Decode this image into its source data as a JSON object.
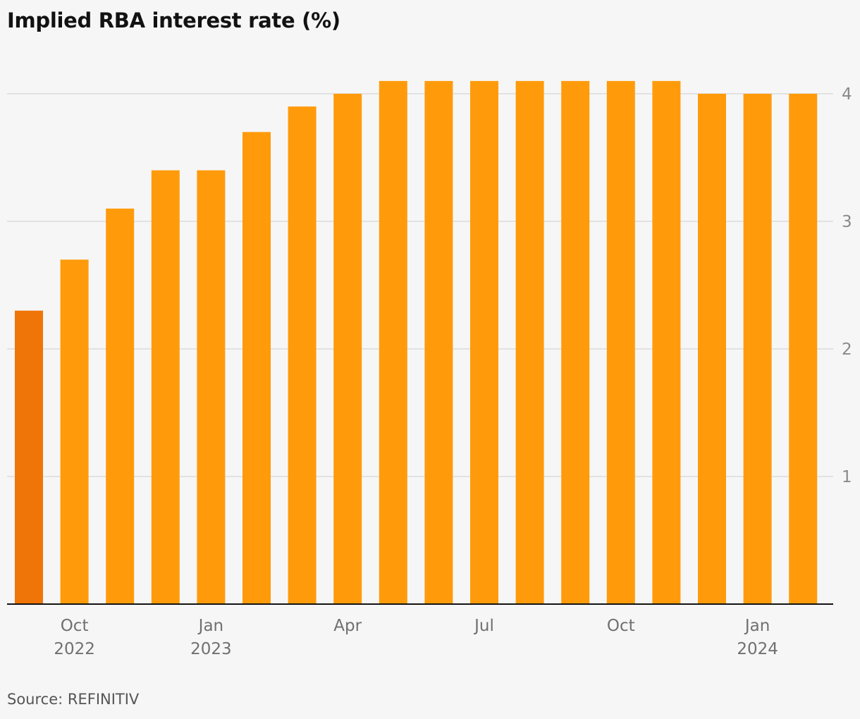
{
  "title": "Implied RBA interest rate (%)",
  "source": "Source: REFINITIV",
  "colors": {
    "bar": "#ff9b0b",
    "highlight": "#f07508",
    "grid": "#dcdcdc",
    "axis": "#121212"
  },
  "chart_data": {
    "type": "bar",
    "title": "Implied RBA interest rate (%)",
    "xlabel": "",
    "ylabel": "",
    "ylim": [
      0,
      4.15
    ],
    "y_ticks": [
      1,
      2,
      3,
      4
    ],
    "y_axis_side": "right",
    "grid": true,
    "categories": [
      "Sep 2022",
      "Oct 2022",
      "Nov 2022",
      "Dec 2022",
      "Jan 2023",
      "Feb 2023",
      "Mar 2023",
      "Apr 2023",
      "May 2023",
      "Jun 2023",
      "Jul 2023",
      "Aug 2023",
      "Sep 2023",
      "Oct 2023",
      "Nov 2023",
      "Dec 2023",
      "Jan 2024",
      "Feb 2024"
    ],
    "values": [
      2.3,
      2.7,
      3.1,
      3.4,
      3.4,
      3.7,
      3.9,
      4.0,
      4.1,
      4.1,
      4.1,
      4.1,
      4.1,
      4.1,
      4.1,
      4.0,
      4.0,
      4.0
    ],
    "highlight_index": 0,
    "x_tick_labels": [
      {
        "index": 1,
        "line1": "Oct",
        "line2": "2022"
      },
      {
        "index": 4,
        "line1": "Jan",
        "line2": "2023"
      },
      {
        "index": 7,
        "line1": "Apr",
        "line2": ""
      },
      {
        "index": 10,
        "line1": "Jul",
        "line2": ""
      },
      {
        "index": 13,
        "line1": "Oct",
        "line2": ""
      },
      {
        "index": 16,
        "line1": "Jan",
        "line2": "2024"
      }
    ]
  }
}
